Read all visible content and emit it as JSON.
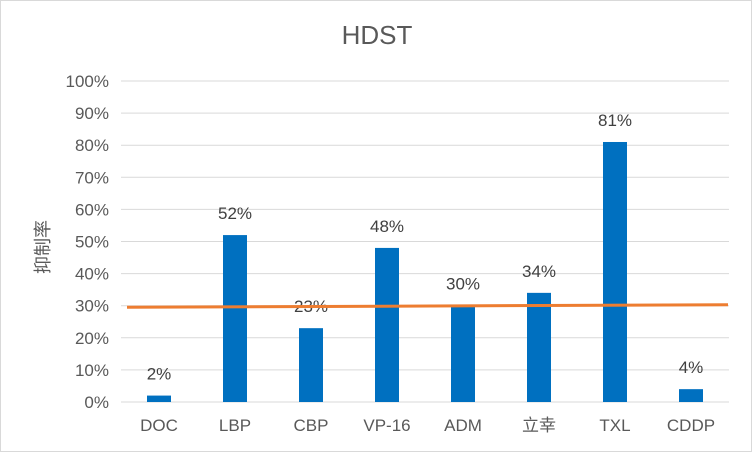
{
  "chart_data": {
    "type": "bar",
    "title": "HDST",
    "ylabel": "抑制率",
    "xlabel": "",
    "categories": [
      "DOC",
      "LBP",
      "CBP",
      "VP-16",
      "ADM",
      "立幸",
      "TXL",
      "CDDP"
    ],
    "series": [
      {
        "values": [
          2,
          52,
          23,
          48,
          30,
          34,
          81,
          4
        ],
        "labels": [
          "2%",
          "52%",
          "23%",
          "48%",
          "30%",
          "34%",
          "81%",
          "4%"
        ],
        "color": "#0070C0"
      }
    ],
    "reference_line": {
      "y_start": 29.5,
      "y_end": 30.3,
      "color": "#ED7D31"
    },
    "ylim": [
      0,
      100
    ],
    "yticks": [
      0,
      10,
      20,
      30,
      40,
      50,
      60,
      70,
      80,
      90,
      100
    ],
    "ytick_labels": [
      "0%",
      "10%",
      "20%",
      "30%",
      "40%",
      "50%",
      "60%",
      "70%",
      "80%",
      "90%",
      "100%"
    ],
    "grid": true,
    "gridline_color": "#d9d9d9",
    "legend": "none"
  }
}
